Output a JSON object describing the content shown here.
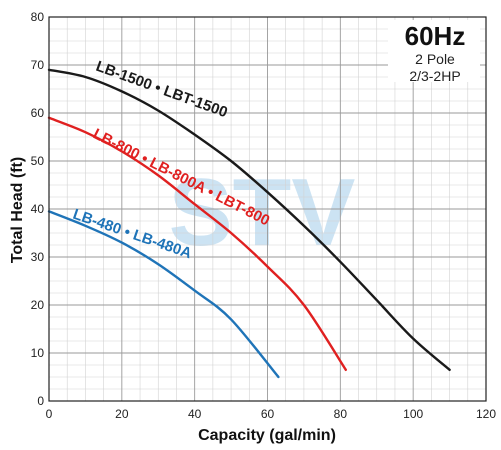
{
  "chart_data": {
    "type": "line",
    "xlabel": "Capacity (gal/min)",
    "ylabel": "Total Head (ft)",
    "xlim": [
      0,
      120
    ],
    "ylim": [
      0,
      80
    ],
    "x_ticks": [
      0,
      20,
      40,
      60,
      80,
      100,
      120
    ],
    "y_ticks": [
      0,
      10,
      20,
      30,
      40,
      50,
      60,
      70,
      80
    ],
    "grid": true,
    "info_box": {
      "title": "60Hz",
      "lines": [
        "2 Pole",
        "2/3-2HP"
      ]
    },
    "watermark": "STV",
    "series": [
      {
        "label": "LB-1500 • LBT-1500",
        "color": "#1a1a1a",
        "x": [
          0,
          10,
          20,
          30,
          40,
          50,
          60,
          70,
          80,
          90,
          100,
          110
        ],
        "y": [
          69,
          67.5,
          64.5,
          60.5,
          55.5,
          50,
          43.5,
          36.5,
          29,
          21,
          13,
          6.5
        ]
      },
      {
        "label": "LB-800 • LB-800A • LBT-800",
        "color": "#e02020",
        "x": [
          0,
          10,
          20,
          30,
          40,
          50,
          60,
          70,
          81.5
        ],
        "y": [
          59,
          56,
          52,
          47,
          41,
          35,
          28,
          20,
          6.5
        ]
      },
      {
        "label": "LB-480 • LB-480A",
        "color": "#1f74b8",
        "x": [
          0,
          10,
          20,
          30,
          40,
          50,
          63
        ],
        "y": [
          39.5,
          36.5,
          33,
          28.5,
          23,
          17,
          5
        ]
      }
    ]
  }
}
